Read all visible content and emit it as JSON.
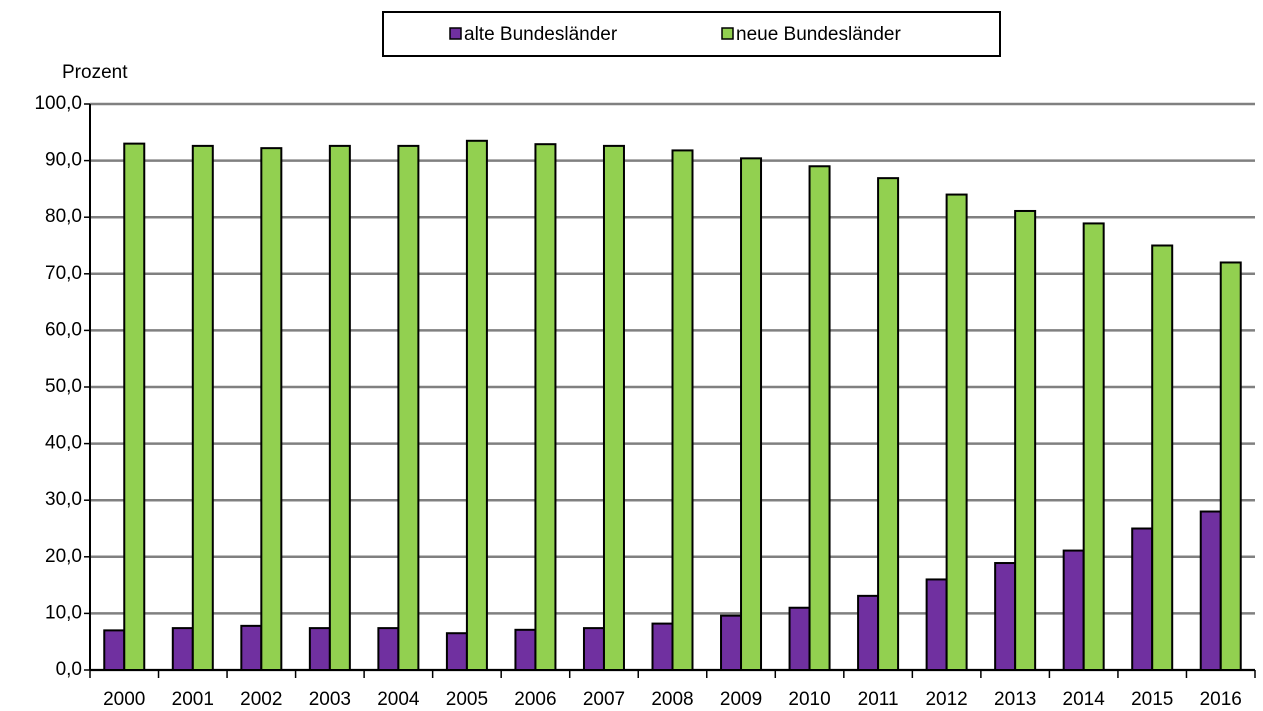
{
  "chart_data": {
    "type": "bar",
    "y_label": "Prozent",
    "categories": [
      "2000",
      "2001",
      "2002",
      "2003",
      "2004",
      "2005",
      "2006",
      "2007",
      "2008",
      "2009",
      "2010",
      "2011",
      "2012",
      "2013",
      "2014",
      "2015",
      "2016"
    ],
    "series": [
      {
        "name": "alte Bundesländer",
        "color": "#7030a0",
        "values": [
          7.0,
          7.4,
          7.8,
          7.4,
          7.4,
          6.5,
          7.1,
          7.4,
          8.2,
          9.6,
          11.0,
          13.1,
          16.0,
          18.9,
          21.1,
          25.0,
          28.0
        ]
      },
      {
        "name": "neue Bundesländer",
        "color": "#92d050",
        "values": [
          93.0,
          92.6,
          92.2,
          92.6,
          92.6,
          93.5,
          92.9,
          92.6,
          91.8,
          90.4,
          89.0,
          86.9,
          84.0,
          81.1,
          78.9,
          75.0,
          72.0
        ]
      }
    ],
    "ylim": [
      0,
      100
    ],
    "yticks": [
      {
        "value": 0,
        "label": "0,0"
      },
      {
        "value": 10,
        "label": "10,0"
      },
      {
        "value": 20,
        "label": "20,0"
      },
      {
        "value": 30,
        "label": "30,0"
      },
      {
        "value": 40,
        "label": "40,0"
      },
      {
        "value": 50,
        "label": "50,0"
      },
      {
        "value": 60,
        "label": "60,0"
      },
      {
        "value": 70,
        "label": "70,0"
      },
      {
        "value": 80,
        "label": "80,0"
      },
      {
        "value": 90,
        "label": "90,0"
      },
      {
        "value": 100,
        "label": "100,0"
      }
    ],
    "grid": true,
    "legend": "top"
  }
}
